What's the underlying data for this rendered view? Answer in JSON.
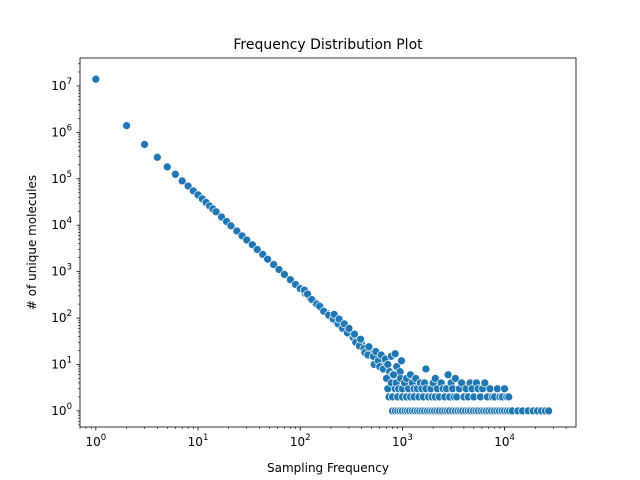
{
  "chart_data": {
    "type": "scatter",
    "title": "Frequency Distribution Plot",
    "xlabel": "Sampling Frequency",
    "ylabel": "# of unique molecules",
    "xscale": "log",
    "yscale": "log",
    "xlim": [
      0.7,
      50000
    ],
    "ylim": [
      0.45,
      40000000
    ],
    "xticks": [
      {
        "base": "10",
        "exp": "0",
        "value": 1
      },
      {
        "base": "10",
        "exp": "1",
        "value": 10
      },
      {
        "base": "10",
        "exp": "2",
        "value": 100
      },
      {
        "base": "10",
        "exp": "3",
        "value": 1000
      },
      {
        "base": "10",
        "exp": "4",
        "value": 10000
      }
    ],
    "yticks": [
      {
        "base": "10",
        "exp": "0",
        "value": 1
      },
      {
        "base": "10",
        "exp": "1",
        "value": 10
      },
      {
        "base": "10",
        "exp": "2",
        "value": 100
      },
      {
        "base": "10",
        "exp": "3",
        "value": 1000
      },
      {
        "base": "10",
        "exp": "4",
        "value": 10000
      },
      {
        "base": "10",
        "exp": "5",
        "value": 100000
      },
      {
        "base": "10",
        "exp": "6",
        "value": 1000000
      },
      {
        "base": "10",
        "exp": "7",
        "value": 10000000
      }
    ],
    "grid": false,
    "marker_color": "#1f77b4",
    "series": [
      {
        "points": [
          [
            1,
            14000000
          ],
          [
            2,
            1400000
          ],
          [
            3,
            550000
          ],
          [
            4,
            290000
          ],
          [
            5,
            180000
          ],
          [
            6,
            125000
          ],
          [
            7,
            90000
          ],
          [
            8,
            70000
          ],
          [
            9,
            55000
          ],
          [
            10,
            45000
          ],
          [
            11,
            37000
          ],
          [
            12,
            31000
          ],
          [
            13,
            26000
          ],
          [
            14,
            22500
          ],
          [
            15,
            19500
          ],
          [
            17,
            15000
          ],
          [
            19,
            12000
          ],
          [
            21,
            9700
          ],
          [
            24,
            7500
          ],
          [
            27,
            5900
          ],
          [
            30,
            4800
          ],
          [
            34,
            3800
          ],
          [
            38,
            3000
          ],
          [
            43,
            2350
          ],
          [
            48,
            1850
          ],
          [
            55,
            1420
          ],
          [
            62,
            1110
          ],
          [
            70,
            870
          ],
          [
            80,
            670
          ],
          [
            90,
            530
          ],
          [
            100,
            430
          ],
          [
            112,
            340
          ],
          [
            125,
            270
          ],
          [
            140,
            215
          ],
          [
            160,
            165
          ],
          [
            180,
            130
          ],
          [
            200,
            105
          ],
          [
            225,
            83
          ],
          [
            250,
            67
          ],
          [
            280,
            54
          ],
          [
            320,
            42
          ],
          [
            360,
            33
          ],
          [
            400,
            27
          ],
          [
            450,
            21
          ],
          [
            500,
            17
          ],
          [
            560,
            13
          ],
          [
            630,
            11
          ],
          [
            710,
            8
          ],
          [
            110,
            400
          ],
          [
            118,
            330
          ],
          [
            130,
            250
          ],
          [
            145,
            200
          ],
          [
            155,
            180
          ],
          [
            170,
            140
          ],
          [
            190,
            115
          ],
          [
            210,
            95
          ],
          [
            215,
            120
          ],
          [
            235,
            75
          ],
          [
            240,
            95
          ],
          [
            260,
            60
          ],
          [
            270,
            75
          ],
          [
            290,
            48
          ],
          [
            300,
            60
          ],
          [
            330,
            38
          ],
          [
            340,
            45
          ],
          [
            350,
            30
          ],
          [
            380,
            25
          ],
          [
            390,
            35
          ],
          [
            420,
            22
          ],
          [
            430,
            18
          ],
          [
            460,
            16
          ],
          [
            470,
            24
          ],
          [
            520,
            15
          ],
          [
            530,
            10
          ],
          [
            550,
            19
          ],
          [
            580,
            12
          ],
          [
            600,
            9
          ],
          [
            620,
            16
          ],
          [
            650,
            8
          ],
          [
            680,
            13
          ],
          [
            720,
            10
          ],
          [
            750,
            7
          ],
          [
            780,
            15
          ],
          [
            800,
            6
          ],
          [
            850,
            17
          ],
          [
            880,
            9
          ],
          [
            900,
            5
          ],
          [
            950,
            7
          ],
          [
            980,
            12
          ],
          [
            700,
            5
          ],
          [
            720,
            3
          ],
          [
            740,
            2
          ],
          [
            780,
            4
          ],
          [
            800,
            2
          ],
          [
            820,
            6
          ],
          [
            850,
            3
          ],
          [
            870,
            4
          ],
          [
            900,
            2
          ],
          [
            920,
            3
          ],
          [
            960,
            5
          ],
          [
            1000,
            3
          ],
          [
            1000,
            2
          ],
          [
            1050,
            4
          ],
          [
            1100,
            2
          ],
          [
            1100,
            5
          ],
          [
            1150,
            3
          ],
          [
            1200,
            6
          ],
          [
            1200,
            2
          ],
          [
            1250,
            4
          ],
          [
            1300,
            3
          ],
          [
            1300,
            2
          ],
          [
            1350,
            5
          ],
          [
            1400,
            3
          ],
          [
            1450,
            2
          ],
          [
            1500,
            4
          ],
          [
            1550,
            3
          ],
          [
            1600,
            2
          ],
          [
            1650,
            4
          ],
          [
            1700,
            8
          ],
          [
            1700,
            3
          ],
          [
            1800,
            2
          ],
          [
            1900,
            3
          ],
          [
            1950,
            2
          ],
          [
            2000,
            4
          ],
          [
            2100,
            5
          ],
          [
            2100,
            2
          ],
          [
            2200,
            3
          ],
          [
            2300,
            2
          ],
          [
            2400,
            4
          ],
          [
            2500,
            3
          ],
          [
            2600,
            2
          ],
          [
            2700,
            3
          ],
          [
            2800,
            6
          ],
          [
            2900,
            2
          ],
          [
            3000,
            4
          ],
          [
            3100,
            3
          ],
          [
            3200,
            2
          ],
          [
            3300,
            5
          ],
          [
            3400,
            2
          ],
          [
            3600,
            3
          ],
          [
            3800,
            4
          ],
          [
            4000,
            2
          ],
          [
            4200,
            3
          ],
          [
            4400,
            2
          ],
          [
            4600,
            4
          ],
          [
            4800,
            3
          ],
          [
            5000,
            2
          ],
          [
            5300,
            4
          ],
          [
            5500,
            3
          ],
          [
            5800,
            2
          ],
          [
            6100,
            3
          ],
          [
            6400,
            4
          ],
          [
            6800,
            2
          ],
          [
            7200,
            3
          ],
          [
            7600,
            2
          ],
          [
            8000,
            2
          ],
          [
            8500,
            3
          ],
          [
            9000,
            2
          ],
          [
            9500,
            2
          ],
          [
            10000,
            3
          ],
          [
            10500,
            2
          ],
          [
            11000,
            2
          ],
          [
            800,
            1
          ],
          [
            850,
            1
          ],
          [
            900,
            1
          ],
          [
            950,
            1
          ],
          [
            1000,
            1
          ],
          [
            1060,
            1
          ],
          [
            1120,
            1
          ],
          [
            1180,
            1
          ],
          [
            1250,
            1
          ],
          [
            1320,
            1
          ],
          [
            1400,
            1
          ],
          [
            1480,
            1
          ],
          [
            1560,
            1
          ],
          [
            1650,
            1
          ],
          [
            1750,
            1
          ],
          [
            1850,
            1
          ],
          [
            1950,
            1
          ],
          [
            2060,
            1
          ],
          [
            2180,
            1
          ],
          [
            2300,
            1
          ],
          [
            2450,
            1
          ],
          [
            2600,
            1
          ],
          [
            2750,
            1
          ],
          [
            2900,
            1
          ],
          [
            3100,
            1
          ],
          [
            3300,
            1
          ],
          [
            3500,
            1
          ],
          [
            3700,
            1
          ],
          [
            3900,
            1
          ],
          [
            4150,
            1
          ],
          [
            4400,
            1
          ],
          [
            4650,
            1
          ],
          [
            4950,
            1
          ],
          [
            5250,
            1
          ],
          [
            5550,
            1
          ],
          [
            5900,
            1
          ],
          [
            6250,
            1
          ],
          [
            6600,
            1
          ],
          [
            7000,
            1
          ],
          [
            7450,
            1
          ],
          [
            7900,
            1
          ],
          [
            8400,
            1
          ],
          [
            8900,
            1
          ],
          [
            9450,
            1
          ],
          [
            10000,
            1
          ],
          [
            10600,
            1
          ],
          [
            11200,
            1
          ],
          [
            11900,
            1
          ],
          [
            13500,
            1
          ],
          [
            15000,
            1
          ],
          [
            17000,
            1
          ],
          [
            19000,
            1
          ],
          [
            21000,
            1
          ],
          [
            23000,
            1
          ],
          [
            25000,
            1
          ],
          [
            27000,
            1
          ]
        ]
      }
    ]
  }
}
